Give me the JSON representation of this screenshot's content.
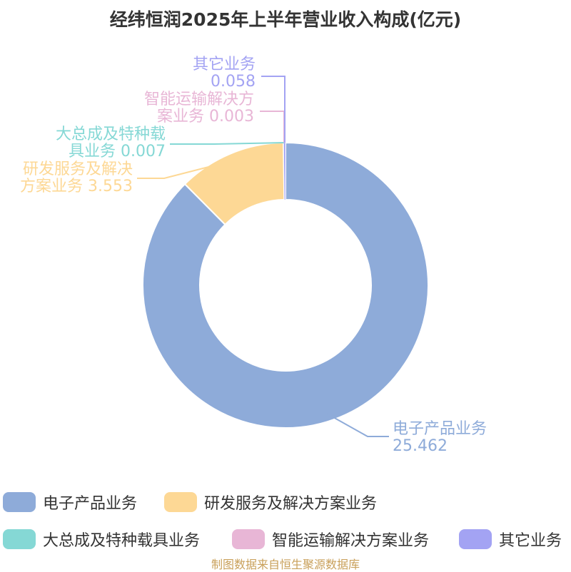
{
  "chart_data": {
    "type": "pie",
    "title": "经纬恒润2025年上半年营业收入构成(亿元)",
    "slices": [
      {
        "name": "电子产品业务",
        "value": 25.462,
        "value_text": "25.462",
        "color": "#8eabd9",
        "label_lines": [
          "电子产品业务",
          "25.462"
        ]
      },
      {
        "name": "研发服务及解决方案业务",
        "value": 3.553,
        "value_text": "3.553",
        "color": "#fdd895",
        "label_lines": [
          "研发服务及解决",
          "方案业务 3.553"
        ]
      },
      {
        "name": "大总成及特种载具业务",
        "value": 0.007,
        "value_text": "0.007",
        "color": "#85d8d5",
        "label_lines": [
          "大总成及特种载",
          "具业务 0.007"
        ]
      },
      {
        "name": "智能运输解决方案业务",
        "value": 0.003,
        "value_text": "0.003",
        "color": "#e8b6d6",
        "label_lines": [
          "智能运输解决方",
          "案业务 0.003"
        ]
      },
      {
        "name": "其它业务",
        "value": 0.058,
        "value_text": "0.058",
        "color": "#a3a3f3",
        "label_lines": [
          "其它业务",
          "0.058"
        ]
      }
    ],
    "legend_position": "bottom"
  },
  "source": {
    "text": "制图数据来自恒生聚源数据库",
    "color": "#c9a05a"
  }
}
